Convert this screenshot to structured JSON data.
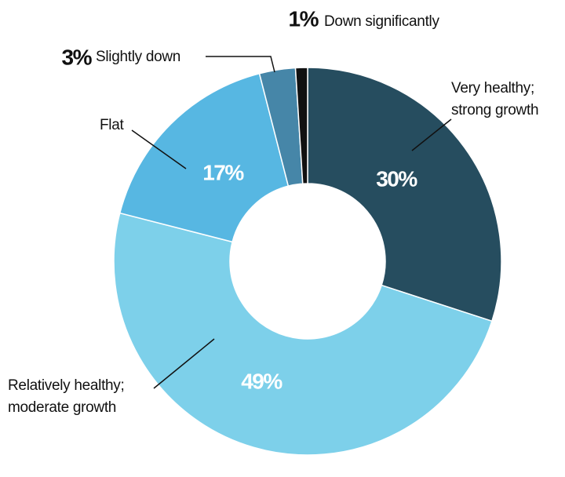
{
  "chart_data": {
    "type": "donut",
    "categories": [
      "Very healthy;\nstrong growth",
      "Relatively healthy;\nmoderate growth",
      "Flat",
      "Slightly down",
      "Down significantly"
    ],
    "values": [
      30,
      49,
      17,
      3,
      1
    ],
    "value_labels": [
      "30%",
      "49%",
      "17%",
      "3%",
      "1%"
    ],
    "colors": [
      "#264d5f",
      "#7dd0ea",
      "#57b7e2",
      "#4686a8",
      "#111111"
    ]
  }
}
